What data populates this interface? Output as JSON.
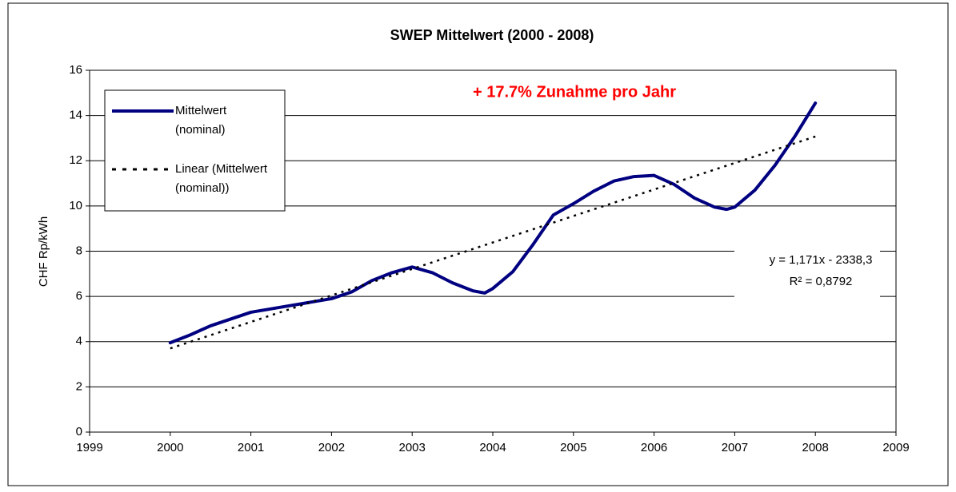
{
  "chart_data": {
    "type": "line",
    "title": "SWEP Mittelwert (2000 - 2008)",
    "y_label": "CHF Rp/kWh",
    "annotations": [
      "+ 17.7% Zunahme pro Jahr",
      "y = 1,171x - 2338,3",
      "R² = 0,8792"
    ],
    "series": [
      {
        "name": "Mittelwert (nominal)",
        "color": "#000080",
        "style": "solid",
        "x": [
          2000,
          2000.25,
          2000.5,
          2000.75,
          2001,
          2001.25,
          2001.5,
          2001.75,
          2002,
          2002.25,
          2002.5,
          2002.75,
          2003,
          2003.25,
          2003.5,
          2003.75,
          2003.9,
          2004,
          2004.25,
          2004.5,
          2004.75,
          2005,
          2005.25,
          2005.5,
          2005.75,
          2006,
          2006.25,
          2006.5,
          2006.75,
          2006.9,
          2007,
          2007.25,
          2007.5,
          2007.75,
          2008
        ],
        "values": [
          3.95,
          4.3,
          4.7,
          5.0,
          5.3,
          5.45,
          5.6,
          5.75,
          5.9,
          6.2,
          6.7,
          7.05,
          7.3,
          7.05,
          6.6,
          6.25,
          6.15,
          6.35,
          7.1,
          8.3,
          9.6,
          10.1,
          10.65,
          11.1,
          11.3,
          11.35,
          10.95,
          10.35,
          9.95,
          9.85,
          9.95,
          10.7,
          11.8,
          13.1,
          14.55
        ]
      },
      {
        "name": "Linear (Mittelwert (nominal))",
        "color": "#000000",
        "style": "dotted",
        "x": [
          2000,
          2008
        ],
        "values": [
          3.7,
          13.07
        ]
      }
    ],
    "xlim": [
      1999,
      2009
    ],
    "xticks": [
      1999,
      2000,
      2001,
      2002,
      2003,
      2004,
      2005,
      2006,
      2007,
      2008,
      2009
    ],
    "ylim": [
      0,
      16
    ],
    "yticks": [
      0,
      2,
      4,
      6,
      8,
      10,
      12,
      14,
      16
    ],
    "grid": true,
    "legend": "upper left"
  }
}
